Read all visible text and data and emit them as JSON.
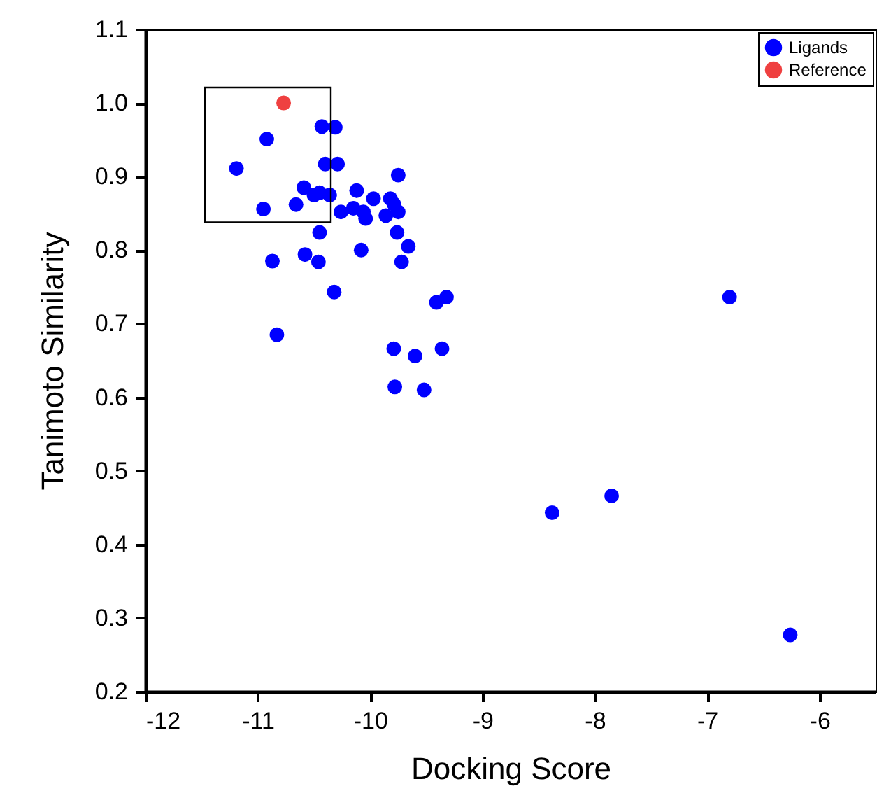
{
  "chart_data": {
    "type": "scatter",
    "xlabel": "Docking Score",
    "ylabel": "Tanimoto Similarity",
    "xlim": [
      -12,
      -5.5
    ],
    "xticks": [
      -12,
      -11,
      -10,
      -9,
      -8,
      -7,
      -6
    ],
    "ylim": [
      0.2,
      1.1
    ],
    "yticks": [
      {
        "value": 0.2,
        "label": "0.2"
      },
      {
        "value": 0.3,
        "label": "0.3"
      },
      {
        "value": 0.4,
        "label": "0.4"
      },
      {
        "value": 0.5,
        "label": "0.5"
      },
      {
        "value": 0.6,
        "label": "0.6"
      },
      {
        "value": 0.7,
        "label": "0.7"
      },
      {
        "value": 0.8,
        "label": "0.8"
      },
      {
        "value": 0.9,
        "label": "0.9"
      },
      {
        "value": 1.0,
        "label": "1.0"
      },
      {
        "value": 1.1,
        "label": "1.1"
      }
    ],
    "grid": false,
    "legend": "top right",
    "marker": "circle",
    "series": [
      {
        "name": "Ligands",
        "color": "#0000ff",
        "x": [
          -11.19,
          -10.92,
          -10.95,
          -10.66,
          -10.59,
          -10.5,
          -10.45,
          -10.36,
          -10.43,
          -10.31,
          -10.4,
          -10.29,
          -10.26,
          -10.45,
          -10.87,
          -10.58,
          -10.46,
          -10.32,
          -10.83,
          -10.12,
          -10.15,
          -10.06,
          -10.04,
          -9.97,
          -10.08,
          -9.86,
          -9.82,
          -9.79,
          -9.75,
          -9.75,
          -9.76,
          -9.66,
          -9.72,
          -9.41,
          -9.32,
          -9.79,
          -9.6,
          -9.36,
          -9.78,
          -9.52,
          -8.38,
          -7.85,
          -6.8,
          -6.26
        ],
        "values": [
          0.911,
          0.951,
          0.856,
          0.862,
          0.885,
          0.875,
          0.878,
          0.875,
          0.968,
          0.967,
          0.917,
          0.917,
          0.852,
          0.824,
          0.785,
          0.794,
          0.784,
          0.743,
          0.685,
          0.881,
          0.857,
          0.852,
          0.843,
          0.87,
          0.8,
          0.847,
          0.87,
          0.863,
          0.852,
          0.902,
          0.824,
          0.805,
          0.784,
          0.729,
          0.736,
          0.666,
          0.656,
          0.666,
          0.614,
          0.61,
          0.443,
          0.466,
          0.736,
          0.277
        ]
      },
      {
        "name": "Reference",
        "color": "#ef4040",
        "x": [
          -10.77
        ],
        "values": [
          1.0
        ]
      }
    ]
  }
}
